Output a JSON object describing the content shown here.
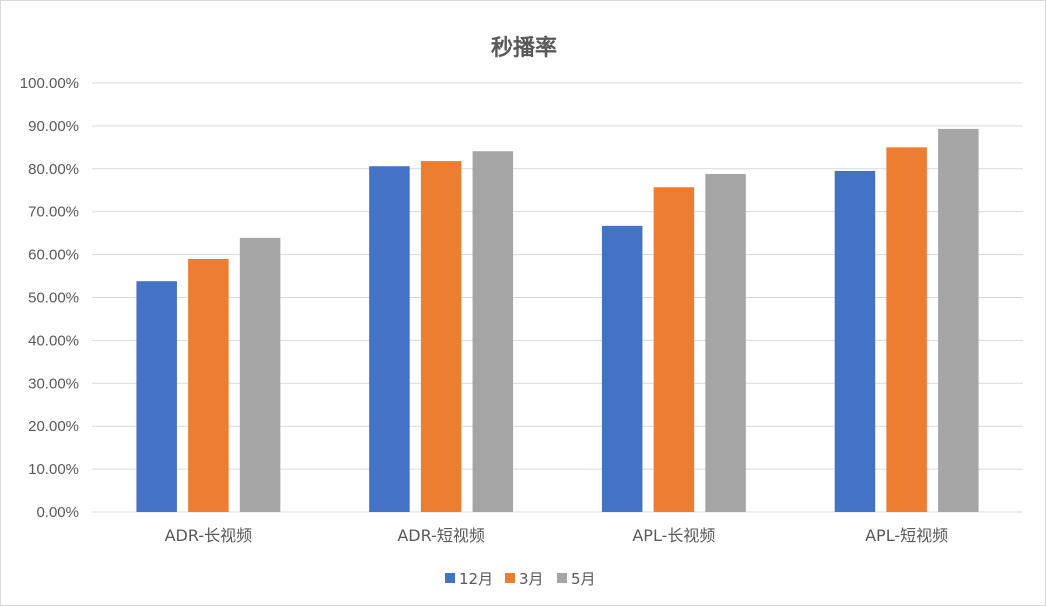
{
  "chart_data": {
    "type": "bar",
    "title": "秒播率",
    "xlabel": "",
    "ylabel": "",
    "categories": [
      "ADR-长视频",
      "ADR-短视频",
      "APL-长视频",
      "APL-短视频"
    ],
    "series": [
      {
        "name": "12月",
        "color": "#4472c4",
        "values": [
          0.538,
          0.806,
          0.667,
          0.795
        ]
      },
      {
        "name": "3月",
        "color": "#ed7d31",
        "values": [
          0.59,
          0.818,
          0.757,
          0.85
        ]
      },
      {
        "name": "5月",
        "color": "#a5a5a5",
        "values": [
          0.639,
          0.841,
          0.788,
          0.893
        ]
      }
    ],
    "ylim": [
      0,
      1.0
    ],
    "yticks": [
      0,
      0.1,
      0.2,
      0.3,
      0.4,
      0.5,
      0.6,
      0.7,
      0.8,
      0.9,
      1.0
    ],
    "ytick_labels": [
      "0.00%",
      "10.00%",
      "20.00%",
      "30.00%",
      "40.00%",
      "50.00%",
      "60.00%",
      "70.00%",
      "80.00%",
      "90.00%",
      "100.00%"
    ],
    "grid": true,
    "legend_position": "bottom",
    "gridline_color": "#d9d9d9",
    "text_color": "#595959"
  }
}
